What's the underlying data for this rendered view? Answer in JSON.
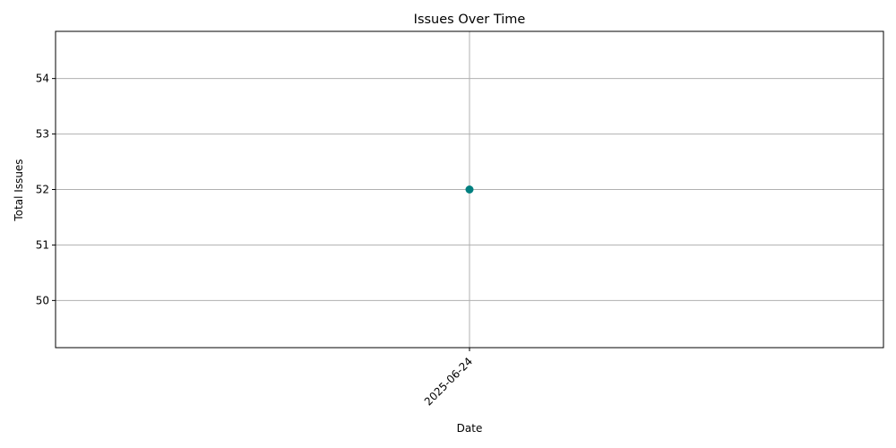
{
  "chart_data": {
    "type": "line",
    "title": "Issues Over Time",
    "xlabel": "Date",
    "ylabel": "Total Issues",
    "categories": [
      "2025-06-24"
    ],
    "series": [
      {
        "values": [
          52
        ],
        "color": "#008080",
        "marker": "circle"
      }
    ],
    "ylim": [
      49.15,
      54.85
    ],
    "yticks": [
      50,
      51,
      52,
      53,
      54
    ],
    "grid": true,
    "xtick_rotation": 45
  }
}
